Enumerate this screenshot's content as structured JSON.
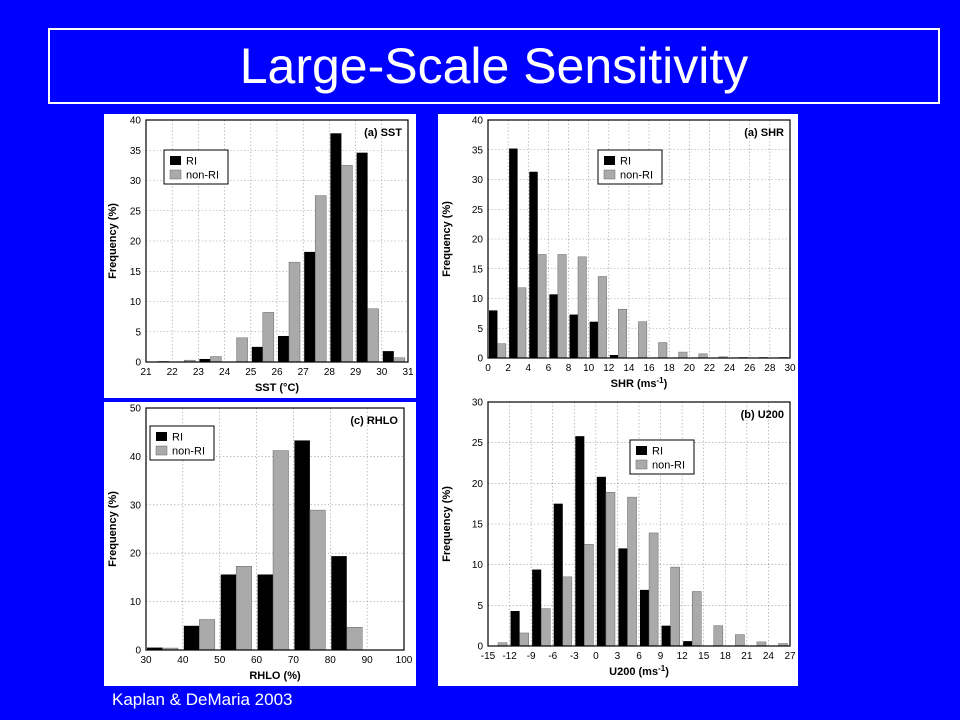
{
  "title": "Large-Scale Sensitivity",
  "credit": "Kaplan & DeMaria 2003",
  "colors": {
    "background": "#0000FF",
    "ri": "#000000",
    "non_ri": "#AAAAAA",
    "panel": "#FFFFFF"
  },
  "chart_data": [
    {
      "id": "sst",
      "type": "bar",
      "tag": "(a) SST",
      "xlabel": "SST (°C)",
      "ylabel": "Frequency (%)",
      "xlim": [
        21,
        31
      ],
      "ylim": [
        0,
        40
      ],
      "xticks": [
        "21",
        "22",
        "23",
        "24",
        "25",
        "26",
        "27",
        "28",
        "29",
        "30",
        "31"
      ],
      "yticks": [
        "0",
        "5",
        "10",
        "15",
        "20",
        "25",
        "30",
        "35",
        "40"
      ],
      "legend": [
        "RI",
        "non-RI"
      ],
      "categories": [
        "21.5",
        "22.5",
        "23.5",
        "24.5",
        "25.5",
        "26.5",
        "27.5",
        "28.5",
        "29.5",
        "30.5"
      ],
      "series": [
        {
          "name": "RI",
          "values": [
            0,
            0,
            0.5,
            0,
            2.5,
            4.3,
            18.2,
            37.8,
            34.6,
            1.8
          ]
        },
        {
          "name": "non-RI",
          "values": [
            0.1,
            0.3,
            0.9,
            4.0,
            8.2,
            16.5,
            27.5,
            32.5,
            8.8,
            0.7
          ]
        }
      ]
    },
    {
      "id": "shr",
      "type": "bar",
      "tag": "(a) SHR",
      "xlabel": "SHR (ms",
      "xlabel_sup": "-1",
      "ylabel": "Frequency (%)",
      "xlim": [
        0,
        30
      ],
      "ylim": [
        0,
        40
      ],
      "xticks": [
        "0",
        "2",
        "4",
        "6",
        "8",
        "10",
        "12",
        "14",
        "16",
        "18",
        "20",
        "22",
        "24",
        "26",
        "28",
        "30"
      ],
      "yticks": [
        "0",
        "5",
        "10",
        "15",
        "20",
        "25",
        "30",
        "35",
        "40"
      ],
      "legend": [
        "RI",
        "non-RI"
      ],
      "categories": [
        "0-2",
        "2-4",
        "4-6",
        "6-8",
        "8-10",
        "10-12",
        "12-14",
        "14-16",
        "16-18",
        "18-20",
        "20-22",
        "22-24",
        "24-26",
        "26-28",
        "28-30"
      ],
      "series": [
        {
          "name": "RI",
          "values": [
            8.0,
            35.2,
            31.3,
            10.7,
            7.3,
            6.1,
            0.5,
            0,
            0,
            0,
            0,
            0,
            0,
            0,
            0
          ]
        },
        {
          "name": "non-RI",
          "values": [
            2.4,
            11.8,
            17.4,
            17.4,
            17.0,
            13.7,
            8.2,
            6.1,
            2.6,
            1.0,
            0.7,
            0.2,
            0.1,
            0.1,
            0.1
          ]
        }
      ]
    },
    {
      "id": "rhlo",
      "type": "bar",
      "tag": "(c) RHLO",
      "xlabel": "RHLO (%)",
      "ylabel": "Frequency (%)",
      "xlim": [
        30,
        100
      ],
      "ylim": [
        0,
        50
      ],
      "xticks": [
        "30",
        "40",
        "50",
        "60",
        "70",
        "80",
        "90",
        "100"
      ],
      "yticks": [
        "0",
        "10",
        "20",
        "30",
        "40",
        "50"
      ],
      "legend": [
        "RI",
        "non-RI"
      ],
      "categories": [
        "30-40",
        "40-50",
        "50-60",
        "60-70",
        "70-80",
        "80-90",
        "90-100"
      ],
      "series": [
        {
          "name": "RI",
          "values": [
            0.5,
            5.0,
            15.6,
            15.6,
            43.3,
            19.4,
            0
          ]
        },
        {
          "name": "non-RI",
          "values": [
            0.4,
            6.3,
            17.3,
            41.2,
            28.9,
            4.7,
            0
          ]
        }
      ]
    },
    {
      "id": "u200",
      "type": "bar",
      "tag": "(b) U200",
      "xlabel": "U200 (ms",
      "xlabel_sup": "-1",
      "ylabel": "Frequency (%)",
      "xlim": [
        -15,
        27
      ],
      "ylim": [
        0,
        30
      ],
      "xticks": [
        "-15",
        "-12",
        "-9",
        "-6",
        "-3",
        "0",
        "3",
        "6",
        "9",
        "12",
        "15",
        "18",
        "21",
        "24",
        "27"
      ],
      "yticks": [
        "0",
        "5",
        "10",
        "15",
        "20",
        "25",
        "30"
      ],
      "legend": [
        "RI",
        "non-RI"
      ],
      "categories": [
        "-15--12",
        "-12--9",
        "-9--6",
        "-6--3",
        "-3-0",
        "0-3",
        "3-6",
        "6-9",
        "9-12",
        "12-15",
        "15-18",
        "18-21",
        "21-24",
        "24-27"
      ],
      "series": [
        {
          "name": "RI",
          "values": [
            0,
            4.3,
            9.4,
            17.5,
            25.8,
            20.8,
            12.0,
            6.9,
            2.5,
            0.6,
            0,
            0,
            0,
            0
          ]
        },
        {
          "name": "non-RI",
          "values": [
            0.4,
            1.6,
            4.6,
            8.5,
            12.5,
            18.9,
            18.3,
            13.9,
            9.7,
            6.7,
            2.5,
            1.4,
            0.5,
            0.3
          ]
        }
      ]
    }
  ]
}
